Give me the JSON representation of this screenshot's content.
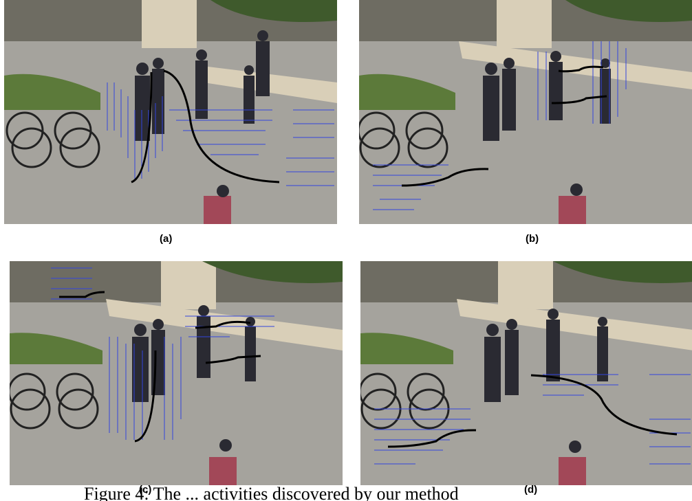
{
  "figure": {
    "panels": [
      {
        "id": "a",
        "label": "(a)"
      },
      {
        "id": "b",
        "label": "(b)"
      },
      {
        "id": "c",
        "label": "(c)"
      },
      {
        "id": "d",
        "label": "(d)"
      }
    ],
    "caption_partial": "Figure 4: The ... activities discovered by our method"
  },
  "colors": {
    "flow_arrow": "#3344dd",
    "trajectory": "#000000",
    "grass": "#5c7a3a",
    "pavement": "#a5a39d",
    "wall": "#d9cfb8"
  },
  "icons": [
    "flow-arrow-icon",
    "trajectory-arrow-icon",
    "bicycle-icon",
    "person-icon"
  ]
}
